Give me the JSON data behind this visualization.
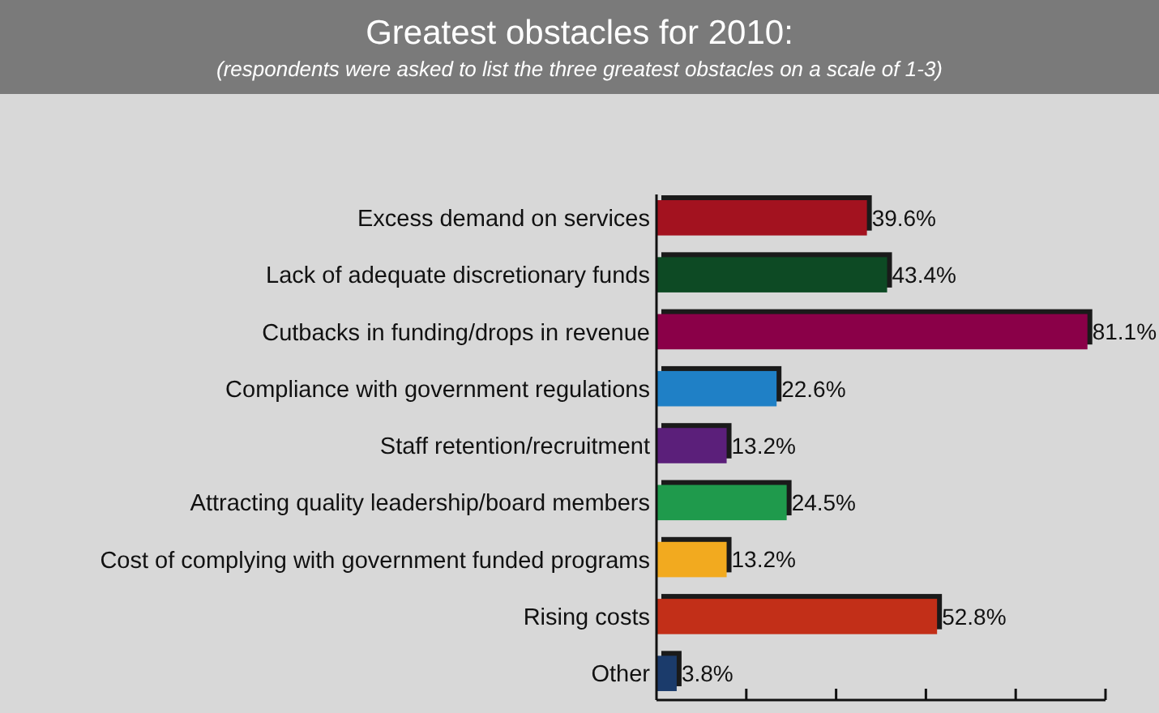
{
  "chart_data": {
    "type": "bar",
    "orientation": "horizontal",
    "title": "Greatest obstacles for 2010:",
    "subtitle": "(respondents were asked to list the three greatest obstacles on a scale of 1-3)",
    "categories": [
      "Excess demand on services",
      "Lack of adequate discretionary funds",
      "Cutbacks in funding/drops in revenue",
      "Compliance with government regulations",
      "Staff retention/recruitment",
      "Attracting quality leadership/board members",
      "Cost of complying with government funded programs",
      "Rising costs",
      "Other"
    ],
    "values": [
      39.6,
      43.4,
      81.1,
      22.6,
      13.2,
      24.5,
      13.2,
      52.8,
      3.8
    ],
    "value_labels": [
      "39.6%",
      "43.4%",
      "81.1%",
      "22.6%",
      "13.2%",
      "24.5%",
      "13.2%",
      "52.8%",
      "3.8%"
    ],
    "colors": [
      "#a3121f",
      "#0d4a24",
      "#8a0048",
      "#1f80c6",
      "#5b1f7a",
      "#1f9a4c",
      "#f2aa1f",
      "#c22f18",
      "#1b3b6b"
    ],
    "xlim": [
      0,
      84.5
    ],
    "xticks": [
      {
        "value": 16.9,
        "label": null
      },
      {
        "value": 33.8,
        "label": null
      },
      {
        "value": 50.7,
        "label": null
      },
      {
        "value": 67.6,
        "label": null
      },
      {
        "value": 84.5,
        "label": null
      }
    ],
    "grid": false
  }
}
